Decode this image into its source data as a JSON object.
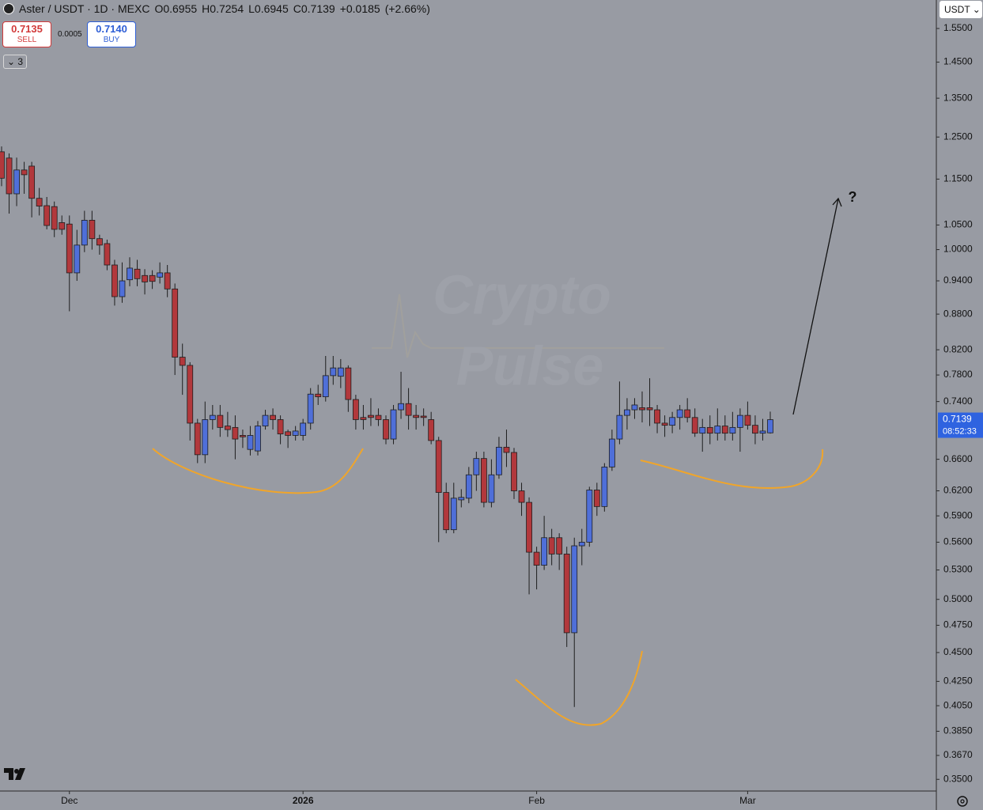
{
  "chart_data": {
    "type": "candlestick",
    "title": "Aster / USDT · 1D · MEXC",
    "ohlc_prefixes": [
      "O",
      "H",
      "L",
      "C"
    ],
    "change": "+0.0185",
    "change_pct": "(+2.66%)",
    "categories": [
      null,
      null,
      null,
      null,
      null,
      null,
      null,
      null,
      null,
      "Dec",
      null,
      null,
      null,
      null,
      null,
      null,
      null,
      null,
      null,
      null,
      null,
      null,
      null,
      null,
      null,
      null,
      null,
      null,
      null,
      null,
      null,
      null,
      null,
      null,
      null,
      null,
      null,
      null,
      null,
      null,
      "2026",
      null,
      null,
      null,
      null,
      null,
      null,
      null,
      null,
      null,
      null,
      null,
      null,
      null,
      null,
      null,
      null,
      null,
      null,
      null,
      null,
      null,
      null,
      null,
      null,
      null,
      null,
      null,
      null,
      null,
      null,
      "Feb",
      null,
      null,
      null,
      null,
      null,
      null,
      null,
      null,
      null,
      null,
      null,
      null,
      null,
      null,
      null,
      null,
      null,
      null,
      null,
      null,
      null,
      null,
      null,
      null,
      null,
      null,
      null,
      "Mar",
      null,
      null,
      null
    ],
    "open": [
      1.214,
      1.199,
      1.117,
      1.171,
      1.18,
      1.107,
      1.091,
      1.089,
      1.055,
      1.052,
      0.955,
      1.009,
      1.06,
      1.022,
      1.012,
      0.97,
      0.911,
      0.942,
      0.962,
      0.95,
      0.95,
      0.947,
      0.955,
      0.925,
      0.808,
      0.795,
      0.709,
      0.666,
      0.714,
      0.72,
      0.705,
      0.703,
      0.692,
      0.673,
      0.671,
      0.705,
      0.72,
      0.714,
      0.697,
      0.692,
      0.692,
      0.709,
      0.751,
      0.747,
      0.779,
      0.778,
      0.791,
      0.743,
      0.717,
      0.72,
      0.72,
      0.714,
      0.687,
      0.728,
      0.737,
      0.72,
      0.719,
      0.714,
      0.685,
      0.618,
      0.574,
      0.609,
      0.611,
      0.64,
      0.661,
      0.606,
      0.64,
      0.676,
      0.669,
      0.62,
      0.606,
      0.549,
      0.535,
      0.565,
      0.565,
      0.547,
      0.468,
      0.556,
      0.56,
      0.621,
      0.601,
      0.65,
      0.687,
      0.72,
      0.728,
      0.731,
      0.731,
      0.728,
      0.709,
      0.706,
      0.717,
      0.728,
      0.717,
      0.695,
      0.703,
      0.695,
      0.705,
      0.695,
      0.703,
      0.72,
      0.706,
      0.695,
      0.6955
    ],
    "high": [
      1.227,
      1.21,
      1.2,
      1.19,
      1.19,
      1.13,
      1.11,
      1.1,
      1.07,
      1.07,
      1.04,
      1.08,
      1.08,
      1.03,
      1.02,
      0.98,
      0.975,
      0.985,
      0.98,
      0.962,
      0.96,
      0.975,
      0.97,
      0.935,
      0.83,
      0.8,
      0.715,
      0.74,
      0.735,
      0.735,
      0.725,
      0.72,
      0.7,
      0.705,
      0.712,
      0.728,
      0.73,
      0.72,
      0.7,
      0.705,
      0.715,
      0.76,
      0.765,
      0.81,
      0.81,
      0.805,
      0.795,
      0.75,
      0.735,
      0.745,
      0.73,
      0.72,
      0.735,
      0.785,
      0.76,
      0.735,
      0.73,
      0.725,
      0.69,
      0.63,
      0.63,
      0.622,
      0.65,
      0.67,
      0.67,
      0.66,
      0.69,
      0.7,
      0.675,
      0.63,
      0.612,
      0.555,
      0.59,
      0.575,
      0.57,
      0.555,
      0.565,
      0.575,
      0.625,
      0.63,
      0.655,
      0.7,
      0.77,
      0.745,
      0.745,
      0.755,
      0.775,
      0.735,
      0.72,
      0.725,
      0.735,
      0.745,
      0.73,
      0.715,
      0.72,
      0.73,
      0.72,
      0.725,
      0.73,
      0.74,
      0.72,
      0.715,
      0.7254
    ],
    "low": [
      1.134,
      1.074,
      1.09,
      1.117,
      1.066,
      1.07,
      1.041,
      1.025,
      1.03,
      0.885,
      0.94,
      0.995,
      1.0,
      0.99,
      0.96,
      0.895,
      0.9,
      0.93,
      0.93,
      0.915,
      0.925,
      0.935,
      0.91,
      0.78,
      0.75,
      0.685,
      0.655,
      0.655,
      0.7,
      0.69,
      0.69,
      0.66,
      0.675,
      0.665,
      0.665,
      0.7,
      0.7,
      0.68,
      0.675,
      0.685,
      0.685,
      0.7,
      0.735,
      0.74,
      0.765,
      0.76,
      0.725,
      0.7,
      0.7,
      0.705,
      0.705,
      0.68,
      0.68,
      0.715,
      0.7,
      0.7,
      0.705,
      0.68,
      0.56,
      0.57,
      0.57,
      0.6,
      0.605,
      0.62,
      0.6,
      0.6,
      0.635,
      0.65,
      0.61,
      0.59,
      0.505,
      0.51,
      0.53,
      0.535,
      0.53,
      0.455,
      0.404,
      0.535,
      0.555,
      0.59,
      0.595,
      0.645,
      0.68,
      0.7,
      0.715,
      0.71,
      0.705,
      0.695,
      0.69,
      0.695,
      0.7,
      0.71,
      0.69,
      0.67,
      0.68,
      0.685,
      0.685,
      0.685,
      0.67,
      0.7,
      0.68,
      0.685,
      0.6945
    ],
    "close": [
      1.152,
      1.117,
      1.171,
      1.16,
      1.107,
      1.09,
      1.049,
      1.041,
      1.041,
      0.955,
      1.009,
      1.06,
      1.022,
      1.009,
      0.97,
      0.911,
      0.94,
      0.964,
      0.944,
      0.938,
      0.939,
      0.955,
      0.925,
      0.808,
      0.795,
      0.709,
      0.666,
      0.714,
      0.72,
      0.703,
      0.7,
      0.687,
      0.69,
      0.692,
      0.705,
      0.72,
      0.714,
      0.694,
      0.692,
      0.698,
      0.709,
      0.751,
      0.747,
      0.779,
      0.791,
      0.791,
      0.743,
      0.714,
      0.714,
      0.717,
      0.714,
      0.687,
      0.728,
      0.737,
      0.72,
      0.717,
      0.717,
      0.685,
      0.618,
      0.574,
      0.611,
      0.612,
      0.64,
      0.661,
      0.606,
      0.64,
      0.676,
      0.669,
      0.62,
      0.606,
      0.549,
      0.535,
      0.565,
      0.547,
      0.547,
      0.468,
      0.556,
      0.56,
      0.621,
      0.601,
      0.65,
      0.687,
      0.72,
      0.728,
      0.735,
      0.728,
      0.728,
      0.709,
      0.706,
      0.717,
      0.728,
      0.717,
      0.695,
      0.703,
      0.695,
      0.705,
      0.695,
      0.703,
      0.72,
      0.706,
      0.695,
      0.698,
      0.7139
    ],
    "up_color": "#4f6fd9",
    "down_color": "#b2383c",
    "ylim": [
      0.342,
      1.64
    ],
    "log_scale": true,
    "grid": false,
    "yticks": [
      {
        "value": 1.55,
        "label": "1.5500"
      },
      {
        "value": 1.45,
        "label": "1.4500"
      },
      {
        "value": 1.35,
        "label": "1.3500"
      },
      {
        "value": 1.25,
        "label": "1.2500"
      },
      {
        "value": 1.15,
        "label": "1.1500"
      },
      {
        "value": 1.05,
        "label": "1.0500"
      },
      {
        "value": 1.0,
        "label": "1.0000"
      },
      {
        "value": 0.94,
        "label": "0.9400"
      },
      {
        "value": 0.88,
        "label": "0.8800"
      },
      {
        "value": 0.82,
        "label": "0.8200"
      },
      {
        "value": 0.78,
        "label": "0.7800"
      },
      {
        "value": 0.74,
        "label": "0.7400"
      },
      {
        "value": 0.66,
        "label": "0.6600"
      },
      {
        "value": 0.62,
        "label": "0.6200"
      },
      {
        "value": 0.59,
        "label": "0.5900"
      },
      {
        "value": 0.56,
        "label": "0.5600"
      },
      {
        "value": 0.53,
        "label": "0.5300"
      },
      {
        "value": 0.5,
        "label": "0.5000"
      },
      {
        "value": 0.475,
        "label": "0.4750"
      },
      {
        "value": 0.45,
        "label": "0.4500"
      },
      {
        "value": 0.425,
        "label": "0.4250"
      },
      {
        "value": 0.405,
        "label": "0.4050"
      },
      {
        "value": 0.385,
        "label": "0.3850"
      },
      {
        "value": 0.367,
        "label": "0.3670"
      },
      {
        "value": 0.35,
        "label": "0.3500"
      }
    ],
    "last_price_countdown": "08:52:33",
    "annotation": "?",
    "watermark": [
      "Crypto",
      "Pulse"
    ]
  },
  "toolbar": {
    "sell_price": "0.7135",
    "sell_label": "SELL",
    "spread": "0.0005",
    "buy_price": "0.7140",
    "buy_label": "BUY",
    "indicators_count": "3",
    "currency": "USDT"
  }
}
